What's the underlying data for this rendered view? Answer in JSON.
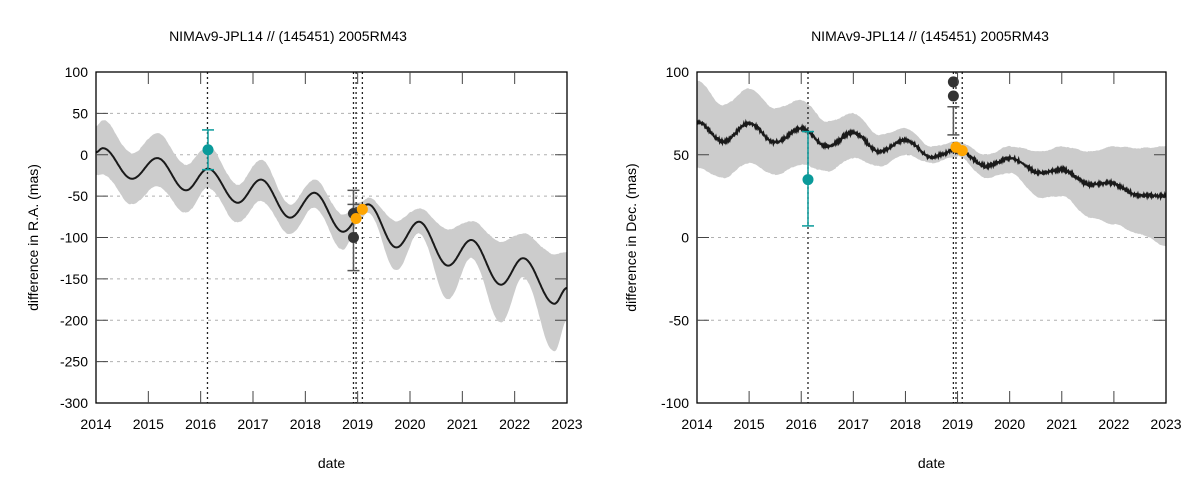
{
  "chart_data": [
    {
      "type": "line",
      "title": "NIMAv9-JPL14 // (145451) 2005RM43",
      "xlabel": "date",
      "ylabel": "difference in R.A. (mas)",
      "xlim": [
        2014,
        2023
      ],
      "ylim": [
        -300,
        100
      ],
      "xticks": [
        2014,
        2015,
        2016,
        2017,
        2018,
        2019,
        2020,
        2021,
        2022,
        2023
      ],
      "yticks": [
        -300,
        -250,
        -200,
        -150,
        -100,
        -50,
        0,
        50,
        100
      ],
      "grid": true,
      "colors": {
        "curve": "#1a1a1a",
        "band": "#cccccc",
        "teal": "#0a9a9a",
        "dark": "#333333",
        "orange": "#ffa500"
      },
      "series": [
        {
          "name": "difference",
          "x": [
            2014.0,
            2014.13,
            2014.69,
            2015.17,
            2015.72,
            2016.14,
            2016.71,
            2017.15,
            2017.71,
            2018.17,
            2018.72,
            2019.2,
            2019.74,
            2020.17,
            2020.73,
            2021.17,
            2021.74,
            2022.16,
            2022.76,
            2023.0
          ],
          "y": [
            3,
            8,
            -29,
            -4,
            -43,
            -17,
            -58,
            -30,
            -76,
            -46,
            -93,
            -60,
            -112,
            -81,
            -134,
            -103,
            -157,
            -125,
            -180,
            -161
          ]
        }
      ],
      "band": {
        "x": [
          2014.0,
          2014.13,
          2014.69,
          2015.17,
          2015.72,
          2016.14,
          2016.71,
          2017.15,
          2017.71,
          2018.17,
          2018.72,
          2019.05,
          2019.2,
          2019.74,
          2020.17,
          2020.73,
          2021.17,
          2021.74,
          2022.16,
          2022.76,
          2023.0
        ],
        "upper": [
          35,
          42,
          2,
          26,
          -12,
          10,
          -36,
          -6,
          -60,
          -30,
          -72,
          -57,
          -52,
          -80,
          -65,
          -90,
          -80,
          -105,
          -95,
          -120,
          -118
        ],
        "lower": [
          -25,
          -24,
          -60,
          -38,
          -70,
          -40,
          -82,
          -56,
          -96,
          -64,
          -115,
          -78,
          -70,
          -140,
          -95,
          -175,
          -125,
          -203,
          -148,
          -238,
          -200
        ]
      },
      "vlines": [
        2016.13,
        2018.92,
        2018.97,
        2019.09
      ],
      "points": [
        {
          "x": 2016.14,
          "y": 6,
          "color": "teal",
          "err_high": 30,
          "err_low": -18
        },
        {
          "x": 2018.92,
          "y": -71,
          "color": "dark",
          "err_high": -43,
          "err_low": -140,
          "caps": [
            -43,
            -60,
            -140
          ]
        },
        {
          "x": 2018.92,
          "y": -100,
          "color": "dark"
        },
        {
          "x": 2018.97,
          "y": -77,
          "color": "orange"
        },
        {
          "x": 2019.09,
          "y": -66,
          "color": "orange"
        }
      ]
    },
    {
      "type": "line",
      "title": "NIMAv9-JPL14 // (145451) 2005RM43",
      "xlabel": "date",
      "ylabel": "difference in Dec. (mas)",
      "xlim": [
        2014,
        2023
      ],
      "ylim": [
        -100,
        100
      ],
      "xticks": [
        2014,
        2015,
        2016,
        2017,
        2018,
        2019,
        2020,
        2021,
        2022,
        2023
      ],
      "yticks": [
        -100,
        -50,
        0,
        50,
        100
      ],
      "grid": true,
      "colors": {
        "curve": "#1a1a1a",
        "band": "#cccccc",
        "teal": "#0a9a9a",
        "dark": "#333333",
        "orange": "#ffa500"
      },
      "series": [
        {
          "name": "difference",
          "x": [
            2014.0,
            2014.5,
            2015.0,
            2015.5,
            2016.0,
            2016.5,
            2017.0,
            2017.5,
            2018.0,
            2018.5,
            2019.0,
            2019.55,
            2020.0,
            2020.6,
            2021.0,
            2021.55,
            2021.9,
            2022.5,
            2023.0
          ],
          "y": [
            70,
            58,
            69,
            57.5,
            66,
            55,
            63.5,
            52,
            59,
            48.5,
            53,
            43,
            48,
            39,
            41,
            32,
            33,
            25.5,
            25
          ]
        }
      ],
      "band": {
        "x": [
          2014.0,
          2014.5,
          2015.0,
          2015.5,
          2016.0,
          2016.5,
          2017.0,
          2017.5,
          2018.0,
          2018.5,
          2019.0,
          2019.55,
          2020.0,
          2020.6,
          2021.0,
          2021.55,
          2022.0,
          2022.5,
          2023.0
        ],
        "upper": [
          95,
          80,
          90,
          78,
          83,
          70,
          75,
          62,
          66,
          55,
          58,
          50,
          55,
          52,
          55,
          52,
          55,
          54,
          55
        ],
        "lower": [
          42,
          36,
          45,
          38,
          44,
          40,
          48,
          43,
          50,
          45,
          49,
          36,
          39,
          24,
          25,
          12,
          8,
          2,
          -5
        ]
      },
      "vlines": [
        2016.13,
        2018.92,
        2018.97,
        2019.09
      ],
      "points": [
        {
          "x": 2016.13,
          "y": 35,
          "color": "teal",
          "err_high": 64,
          "err_low": 7
        },
        {
          "x": 2018.92,
          "y": 94,
          "color": "dark"
        },
        {
          "x": 2018.92,
          "y": 85.5,
          "color": "dark",
          "err_high": 79,
          "err_low": 62,
          "caps": [
            79,
            62
          ]
        },
        {
          "x": 2018.97,
          "y": 54.5,
          "color": "orange"
        },
        {
          "x": 2019.09,
          "y": 52.5,
          "color": "orange"
        }
      ]
    }
  ]
}
